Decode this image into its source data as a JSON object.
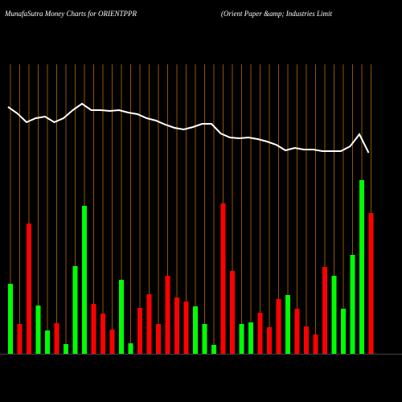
{
  "chart_data": {
    "type": "bar",
    "title": "MunafaSutra  Money  Charts for ORIENTPPR",
    "subtitle": "(Orient Paper &amp; Industries Limit",
    "categories": [
      null,
      null,
      null,
      null,
      null,
      null,
      null,
      null,
      null,
      null,
      null,
      null,
      null,
      null,
      null,
      null,
      null,
      null,
      null,
      null,
      null,
      null,
      null,
      null,
      null,
      null,
      null,
      null,
      null,
      null,
      null,
      null,
      null,
      null,
      null,
      null,
      null,
      null,
      null,
      null
    ],
    "values": [
      87,
      37,
      162,
      60,
      29,
      38,
      12,
      109,
      184,
      62,
      50,
      30,
      92,
      13,
      57,
      74,
      37,
      97,
      70,
      65,
      59,
      37,
      11,
      187,
      103,
      37,
      39,
      51,
      33,
      68,
      73,
      56,
      34,
      24,
      108,
      97,
      56,
      123,
      216,
      175
    ],
    "colors": [
      "#00ff00",
      "#ff0000",
      "#ff0000",
      "#00ff00",
      "#00ff00",
      "#ff0000",
      "#00ff00",
      "#00ff00",
      "#00ff00",
      "#ff0000",
      "#ff0000",
      "#ff0000",
      "#00ff00",
      "#00ff00",
      "#ff0000",
      "#ff0000",
      "#ff0000",
      "#ff0000",
      "#ff0000",
      "#ff0000",
      "#00ff00",
      "#00ff00",
      "#00ff00",
      "#ff0000",
      "#ff0000",
      "#00ff00",
      "#00ff00",
      "#ff0000",
      "#ff0000",
      "#ff0000",
      "#00ff00",
      "#ff0000",
      "#ff0000",
      "#ff0000",
      "#ff0000",
      "#00ff00",
      "#00ff00",
      "#00ff00",
      "#00ff00",
      "#ff0000"
    ],
    "line": {
      "color": "#ffffff",
      "values": [
        307,
        299,
        288,
        293,
        295,
        288,
        293,
        303,
        311,
        303,
        303,
        302,
        303,
        300,
        298,
        293,
        290,
        285,
        281,
        279,
        282,
        286,
        286,
        274,
        269,
        268,
        269,
        267,
        264,
        260,
        253,
        256,
        254,
        254,
        252,
        252,
        252,
        258,
        273,
        250
      ]
    },
    "ylim": [
      0,
      360
    ],
    "grid_color": "#b86a00"
  }
}
